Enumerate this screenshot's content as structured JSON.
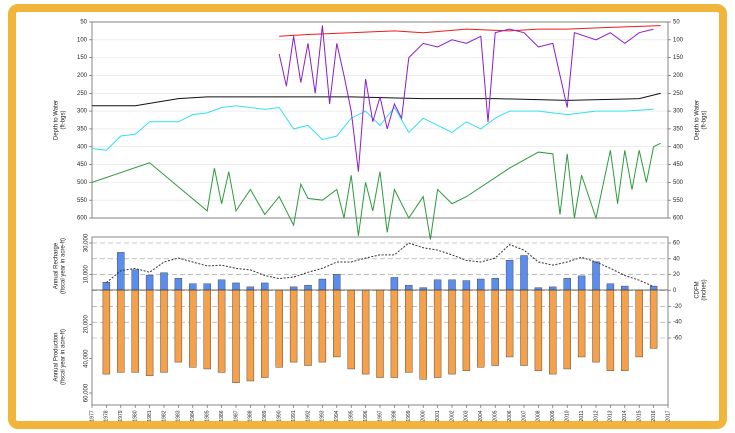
{
  "chart_data": [
    {
      "type": "line",
      "ylabel": [
        "Depth to Water",
        "(ft-bgs)"
      ],
      "y2label": [
        "Depth to Water",
        "(ft-bgs)"
      ],
      "xlim": [
        1977,
        2017
      ],
      "ylim": [
        50,
        600
      ],
      "yinverted": true,
      "yticks": [
        50,
        100,
        150,
        200,
        250,
        300,
        350,
        400,
        450,
        500,
        550,
        600
      ],
      "grid": true,
      "series": [
        {
          "color": "#2e9a3e",
          "x": [
            1977,
            1981,
            1985,
            1985.5,
            1986,
            1986.5,
            1987,
            1988,
            1989,
            1990,
            1991,
            1991.5,
            1992,
            1993,
            1994,
            1994.5,
            1995,
            1995.5,
            1996,
            1996.5,
            1997,
            1997.5,
            1998,
            1999,
            2000,
            2000.5,
            2001,
            2002,
            2003,
            2006,
            2008,
            2009,
            2009.5,
            2010,
            2010.5,
            2011,
            2012,
            2013,
            2013.5,
            2014,
            2014.5,
            2015,
            2015.5,
            2016,
            2016.5
          ],
          "values": [
            500,
            445,
            580,
            460,
            560,
            470,
            580,
            520,
            590,
            540,
            620,
            505,
            545,
            550,
            520,
            600,
            480,
            650,
            500,
            580,
            470,
            640,
            520,
            600,
            540,
            660,
            520,
            560,
            540,
            460,
            415,
            420,
            590,
            420,
            600,
            480,
            600,
            410,
            560,
            410,
            520,
            410,
            500,
            400,
            390
          ]
        },
        {
          "color": "#33e0f0",
          "x": [
            1977,
            1978,
            1979,
            1980,
            1981,
            1983,
            1984,
            1985,
            1986,
            1987,
            1989,
            1990,
            1991,
            1992,
            1993,
            1994,
            1995,
            1996,
            1997,
            1998,
            1999,
            2000,
            2001,
            2002,
            2003,
            2004,
            2005,
            2006,
            2008,
            2010,
            2012,
            2014,
            2016
          ],
          "values": [
            405,
            410,
            370,
            365,
            330,
            330,
            310,
            305,
            290,
            285,
            295,
            290,
            350,
            340,
            380,
            370,
            320,
            300,
            340,
            290,
            360,
            320,
            340,
            360,
            330,
            350,
            320,
            300,
            300,
            310,
            300,
            300,
            295
          ]
        },
        {
          "color": "#111111",
          "x": [
            1977,
            1980,
            1983,
            1985,
            1990,
            1995,
            2000,
            2005,
            2010,
            2015,
            2016.5
          ],
          "values": [
            285,
            285,
            265,
            260,
            260,
            260,
            265,
            265,
            270,
            265,
            250
          ]
        },
        {
          "color": "#ee1c1c",
          "x": [
            1990,
            1992,
            1995,
            1998,
            2000,
            2003,
            2006,
            2008,
            2010,
            2013,
            2016.5
          ],
          "values": [
            90,
            85,
            80,
            75,
            80,
            70,
            75,
            70,
            70,
            65,
            60
          ]
        },
        {
          "color": "#8a1fc9",
          "x": [
            1990,
            1990.5,
            1991,
            1991.5,
            1992,
            1992.5,
            1993,
            1993.5,
            1994,
            1994.5,
            1995,
            1995.5,
            1996,
            1996.5,
            1997,
            1997.5,
            1998,
            1998.5,
            1999,
            2000,
            2001,
            2002,
            2003,
            2004,
            2004.5,
            2005,
            2006,
            2007,
            2008,
            2009,
            2010,
            2010.5,
            2012,
            2013,
            2014,
            2015,
            2016
          ],
          "values": [
            140,
            230,
            90,
            220,
            110,
            250,
            60,
            280,
            110,
            200,
            300,
            470,
            210,
            330,
            260,
            350,
            280,
            320,
            150,
            110,
            120,
            100,
            110,
            90,
            330,
            80,
            70,
            80,
            120,
            110,
            290,
            80,
            100,
            80,
            110,
            80,
            70
          ]
        }
      ]
    },
    {
      "type": "bar",
      "ylabel": [
        "Annual Recharge",
        "(fiscal year in acre-ft)"
      ],
      "y3label": [
        "Annual Production",
        "(fiscal year in acre-ft)"
      ],
      "y2label": [
        "CDFM",
        "(inches)"
      ],
      "xlim": [
        1977,
        2017
      ],
      "xticks": [
        1977,
        1978,
        1979,
        1980,
        1981,
        1982,
        1983,
        1984,
        1985,
        1986,
        1987,
        1988,
        1989,
        1990,
        1991,
        1992,
        1993,
        1994,
        1995,
        1996,
        1997,
        1998,
        1999,
        2000,
        2001,
        2002,
        2003,
        2004,
        2005,
        2006,
        2007,
        2008,
        2009,
        2010,
        2011,
        2012,
        2013,
        2014,
        2015,
        2016,
        2017
      ],
      "ylim": [
        0,
        30000
      ],
      "yticks": [
        {
          "value": 10000,
          "label": "10,000"
        },
        {
          "value": 30000,
          "label": "30,000"
        }
      ],
      "y3lim": [
        0,
        60000
      ],
      "y3ticks": [
        {
          "value": 20000,
          "label": "20,000"
        },
        {
          "value": 40000,
          "label": "40,000"
        },
        {
          "value": 60000,
          "label": "60,000"
        }
      ],
      "y2lim": [
        -60,
        60
      ],
      "y2ticks": [
        -60,
        -40,
        -20,
        0,
        20,
        40,
        60
      ],
      "y2grid": true,
      "x": [
        1978,
        1979,
        1980,
        1981,
        1982,
        1983,
        1984,
        1985,
        1986,
        1987,
        1988,
        1989,
        1990,
        1991,
        1992,
        1993,
        1994,
        1995,
        1996,
        1997,
        1998,
        1999,
        2000,
        2001,
        2002,
        2003,
        2004,
        2005,
        2006,
        2007,
        2008,
        2009,
        2010,
        2011,
        2012,
        2013,
        2014,
        2015,
        2016
      ],
      "series": [
        {
          "type": "bar",
          "axis": "y",
          "color": "#5b8def",
          "values": [
            5000,
            24000,
            13000,
            9500,
            11000,
            7500,
            4000,
            4000,
            6500,
            4500,
            2000,
            4500,
            0,
            2000,
            3000,
            7000,
            10000,
            0,
            0,
            0,
            8000,
            3000,
            1500,
            6500,
            6500,
            6000,
            7000,
            7500,
            19000,
            22000,
            1500,
            2000,
            7500,
            9000,
            18000,
            4000,
            2500,
            0,
            2500
          ]
        },
        {
          "type": "bar",
          "axis": "y3",
          "color": "#f5a04a",
          "values": [
            49000,
            48000,
            48000,
            50000,
            48000,
            42000,
            45000,
            46000,
            48000,
            54000,
            53000,
            51000,
            45000,
            42000,
            44000,
            42000,
            39000,
            46000,
            49000,
            51000,
            51000,
            48000,
            52000,
            51000,
            49000,
            47000,
            45000,
            44000,
            39000,
            44000,
            47000,
            49000,
            46000,
            39000,
            42000,
            47000,
            47000,
            39000,
            34000
          ]
        },
        {
          "type": "line",
          "axis": "y2",
          "color": "#333333",
          "dashed": true,
          "values": [
            10,
            25,
            28,
            23,
            36,
            41,
            36,
            31,
            32,
            28,
            26,
            19,
            15,
            17,
            23,
            28,
            36,
            36,
            41,
            45,
            45,
            60,
            54,
            51,
            45,
            38,
            36,
            41,
            58,
            51,
            36,
            32,
            36,
            42,
            36,
            28,
            19,
            13,
            5
          ]
        }
      ]
    }
  ]
}
